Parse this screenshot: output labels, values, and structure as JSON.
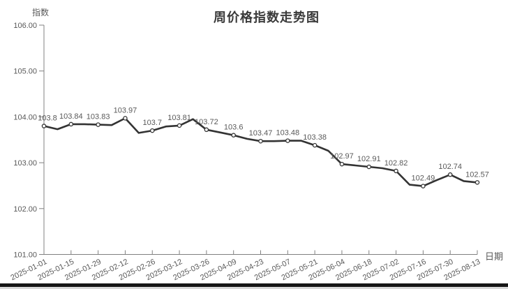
{
  "colors": {
    "line": "#333333",
    "marker_fill": "#ffffff",
    "marker_stroke": "#333333",
    "axis": "#808080",
    "tick_text": "#595959",
    "point_label_text": "#595959",
    "title_text": "#3a3a3a",
    "bottom_bar": "#161616"
  },
  "chart_data": {
    "type": "line",
    "title": "周价格指数走势图",
    "xlabel": "日期",
    "ylabel": "指数",
    "ylim": [
      101,
      106
    ],
    "grid": false,
    "legend": false,
    "y_tick_labels": [
      "101.00",
      "102.00",
      "103.00",
      "104.00",
      "105.00",
      "106.00"
    ],
    "x_tick_labels": [
      "2025-01-01",
      "2025-01-15",
      "2025-01-29",
      "2025-02-12",
      "2025-02-26",
      "2025-03-12",
      "2025-03-26",
      "2025-04-09",
      "2025-04-23",
      "2025-05-07",
      "2025-05-21",
      "2025-06-04",
      "2025-06-18",
      "2025-07-02",
      "2025-07-16",
      "2025-07-30",
      "2025-08-13"
    ],
    "points": [
      {
        "date": "2025-01-01",
        "value": 103.8,
        "label": "103.8"
      },
      {
        "date": "2025-01-08",
        "value": 103.73,
        "label": ""
      },
      {
        "date": "2025-01-15",
        "value": 103.84,
        "label": "103.84"
      },
      {
        "date": "2025-01-22",
        "value": 103.84,
        "label": ""
      },
      {
        "date": "2025-01-29",
        "value": 103.83,
        "label": "103.83"
      },
      {
        "date": "2025-02-05",
        "value": 103.82,
        "label": ""
      },
      {
        "date": "2025-02-12",
        "value": 103.97,
        "label": "103.97"
      },
      {
        "date": "2025-02-19",
        "value": 103.65,
        "label": ""
      },
      {
        "date": "2025-02-26",
        "value": 103.7,
        "label": "103.7"
      },
      {
        "date": "2025-03-05",
        "value": 103.79,
        "label": ""
      },
      {
        "date": "2025-03-12",
        "value": 103.81,
        "label": "103.81"
      },
      {
        "date": "2025-03-19",
        "value": 103.95,
        "label": ""
      },
      {
        "date": "2025-03-26",
        "value": 103.72,
        "label": "103.72"
      },
      {
        "date": "2025-04-02",
        "value": 103.66,
        "label": ""
      },
      {
        "date": "2025-04-09",
        "value": 103.6,
        "label": "103.6"
      },
      {
        "date": "2025-04-16",
        "value": 103.52,
        "label": ""
      },
      {
        "date": "2025-04-23",
        "value": 103.47,
        "label": "103.47"
      },
      {
        "date": "2025-04-30",
        "value": 103.47,
        "label": ""
      },
      {
        "date": "2025-05-07",
        "value": 103.48,
        "label": "103.48"
      },
      {
        "date": "2025-05-14",
        "value": 103.48,
        "label": ""
      },
      {
        "date": "2025-05-21",
        "value": 103.38,
        "label": "103.38"
      },
      {
        "date": "2025-05-28",
        "value": 103.26,
        "label": ""
      },
      {
        "date": "2025-06-04",
        "value": 102.97,
        "label": "102.97"
      },
      {
        "date": "2025-06-11",
        "value": 102.94,
        "label": ""
      },
      {
        "date": "2025-06-18",
        "value": 102.91,
        "label": "102.91"
      },
      {
        "date": "2025-06-25",
        "value": 102.88,
        "label": ""
      },
      {
        "date": "2025-07-02",
        "value": 102.82,
        "label": "102.82"
      },
      {
        "date": "2025-07-09",
        "value": 102.52,
        "label": ""
      },
      {
        "date": "2025-07-16",
        "value": 102.49,
        "label": "102.49"
      },
      {
        "date": "2025-07-23",
        "value": 102.62,
        "label": ""
      },
      {
        "date": "2025-07-30",
        "value": 102.74,
        "label": "102.74"
      },
      {
        "date": "2025-08-06",
        "value": 102.6,
        "label": ""
      },
      {
        "date": "2025-08-13",
        "value": 102.57,
        "label": "102.57"
      }
    ]
  }
}
